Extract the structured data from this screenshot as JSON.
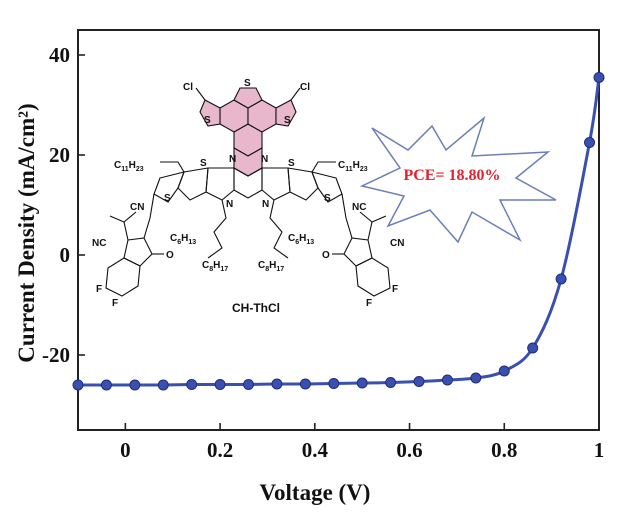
{
  "chart_data": {
    "type": "line",
    "xlabel": "Voltage (V)",
    "ylabel": "Current Density (mA/cm²)",
    "xlim": [
      -0.1,
      1.0
    ],
    "ylim": [
      -35,
      45
    ],
    "xticks": [
      0,
      0.2,
      0.4,
      0.6,
      0.8,
      1
    ],
    "xtick_labels": [
      "0",
      "0.2",
      "0.4",
      "0.6",
      "0.8",
      "1"
    ],
    "yticks": [
      -20,
      0,
      20,
      40
    ],
    "ytick_labels": [
      "-20",
      "0",
      "20",
      "40"
    ],
    "grid": false,
    "series": [
      {
        "color": "#3a50b0",
        "marker": "circle",
        "x": [
          -0.1,
          -0.04,
          0.02,
          0.08,
          0.14,
          0.2,
          0.26,
          0.32,
          0.38,
          0.44,
          0.5,
          0.56,
          0.62,
          0.68,
          0.74,
          0.8,
          0.86,
          0.92,
          0.98,
          1.0
        ],
        "y": [
          -26.0,
          -26.0,
          -26.0,
          -26.0,
          -25.9,
          -25.9,
          -25.9,
          -25.8,
          -25.8,
          -25.7,
          -25.6,
          -25.5,
          -25.3,
          -25.0,
          -24.6,
          -23.2,
          -18.6,
          -4.8,
          22.5,
          35.5
        ]
      }
    ],
    "annotations": [
      {
        "text": "PCE= 18.80%",
        "color": "#e8202a"
      }
    ]
  },
  "molecule": {
    "name": "CH-ThCl",
    "atoms": {
      "cl": "Cl",
      "s": "S",
      "n": "N",
      "o": "O",
      "f": "F",
      "cn": "CN",
      "nc": "NC",
      "c11": "C",
      "c11_sub": "11",
      "h23": "H",
      "h23_sub": "23",
      "c6": "C",
      "c6_sub": "6",
      "h13": "H",
      "h13_sub": "13",
      "c8": "C",
      "c8_sub": "8",
      "h17": "H",
      "h17_sub": "17"
    }
  },
  "colors": {
    "curve": "#3a50b0",
    "pce_text": "#e8202a",
    "burst_stroke": "#6a7fb8",
    "highlight": "#e8b7cc",
    "axis": "#222222"
  }
}
